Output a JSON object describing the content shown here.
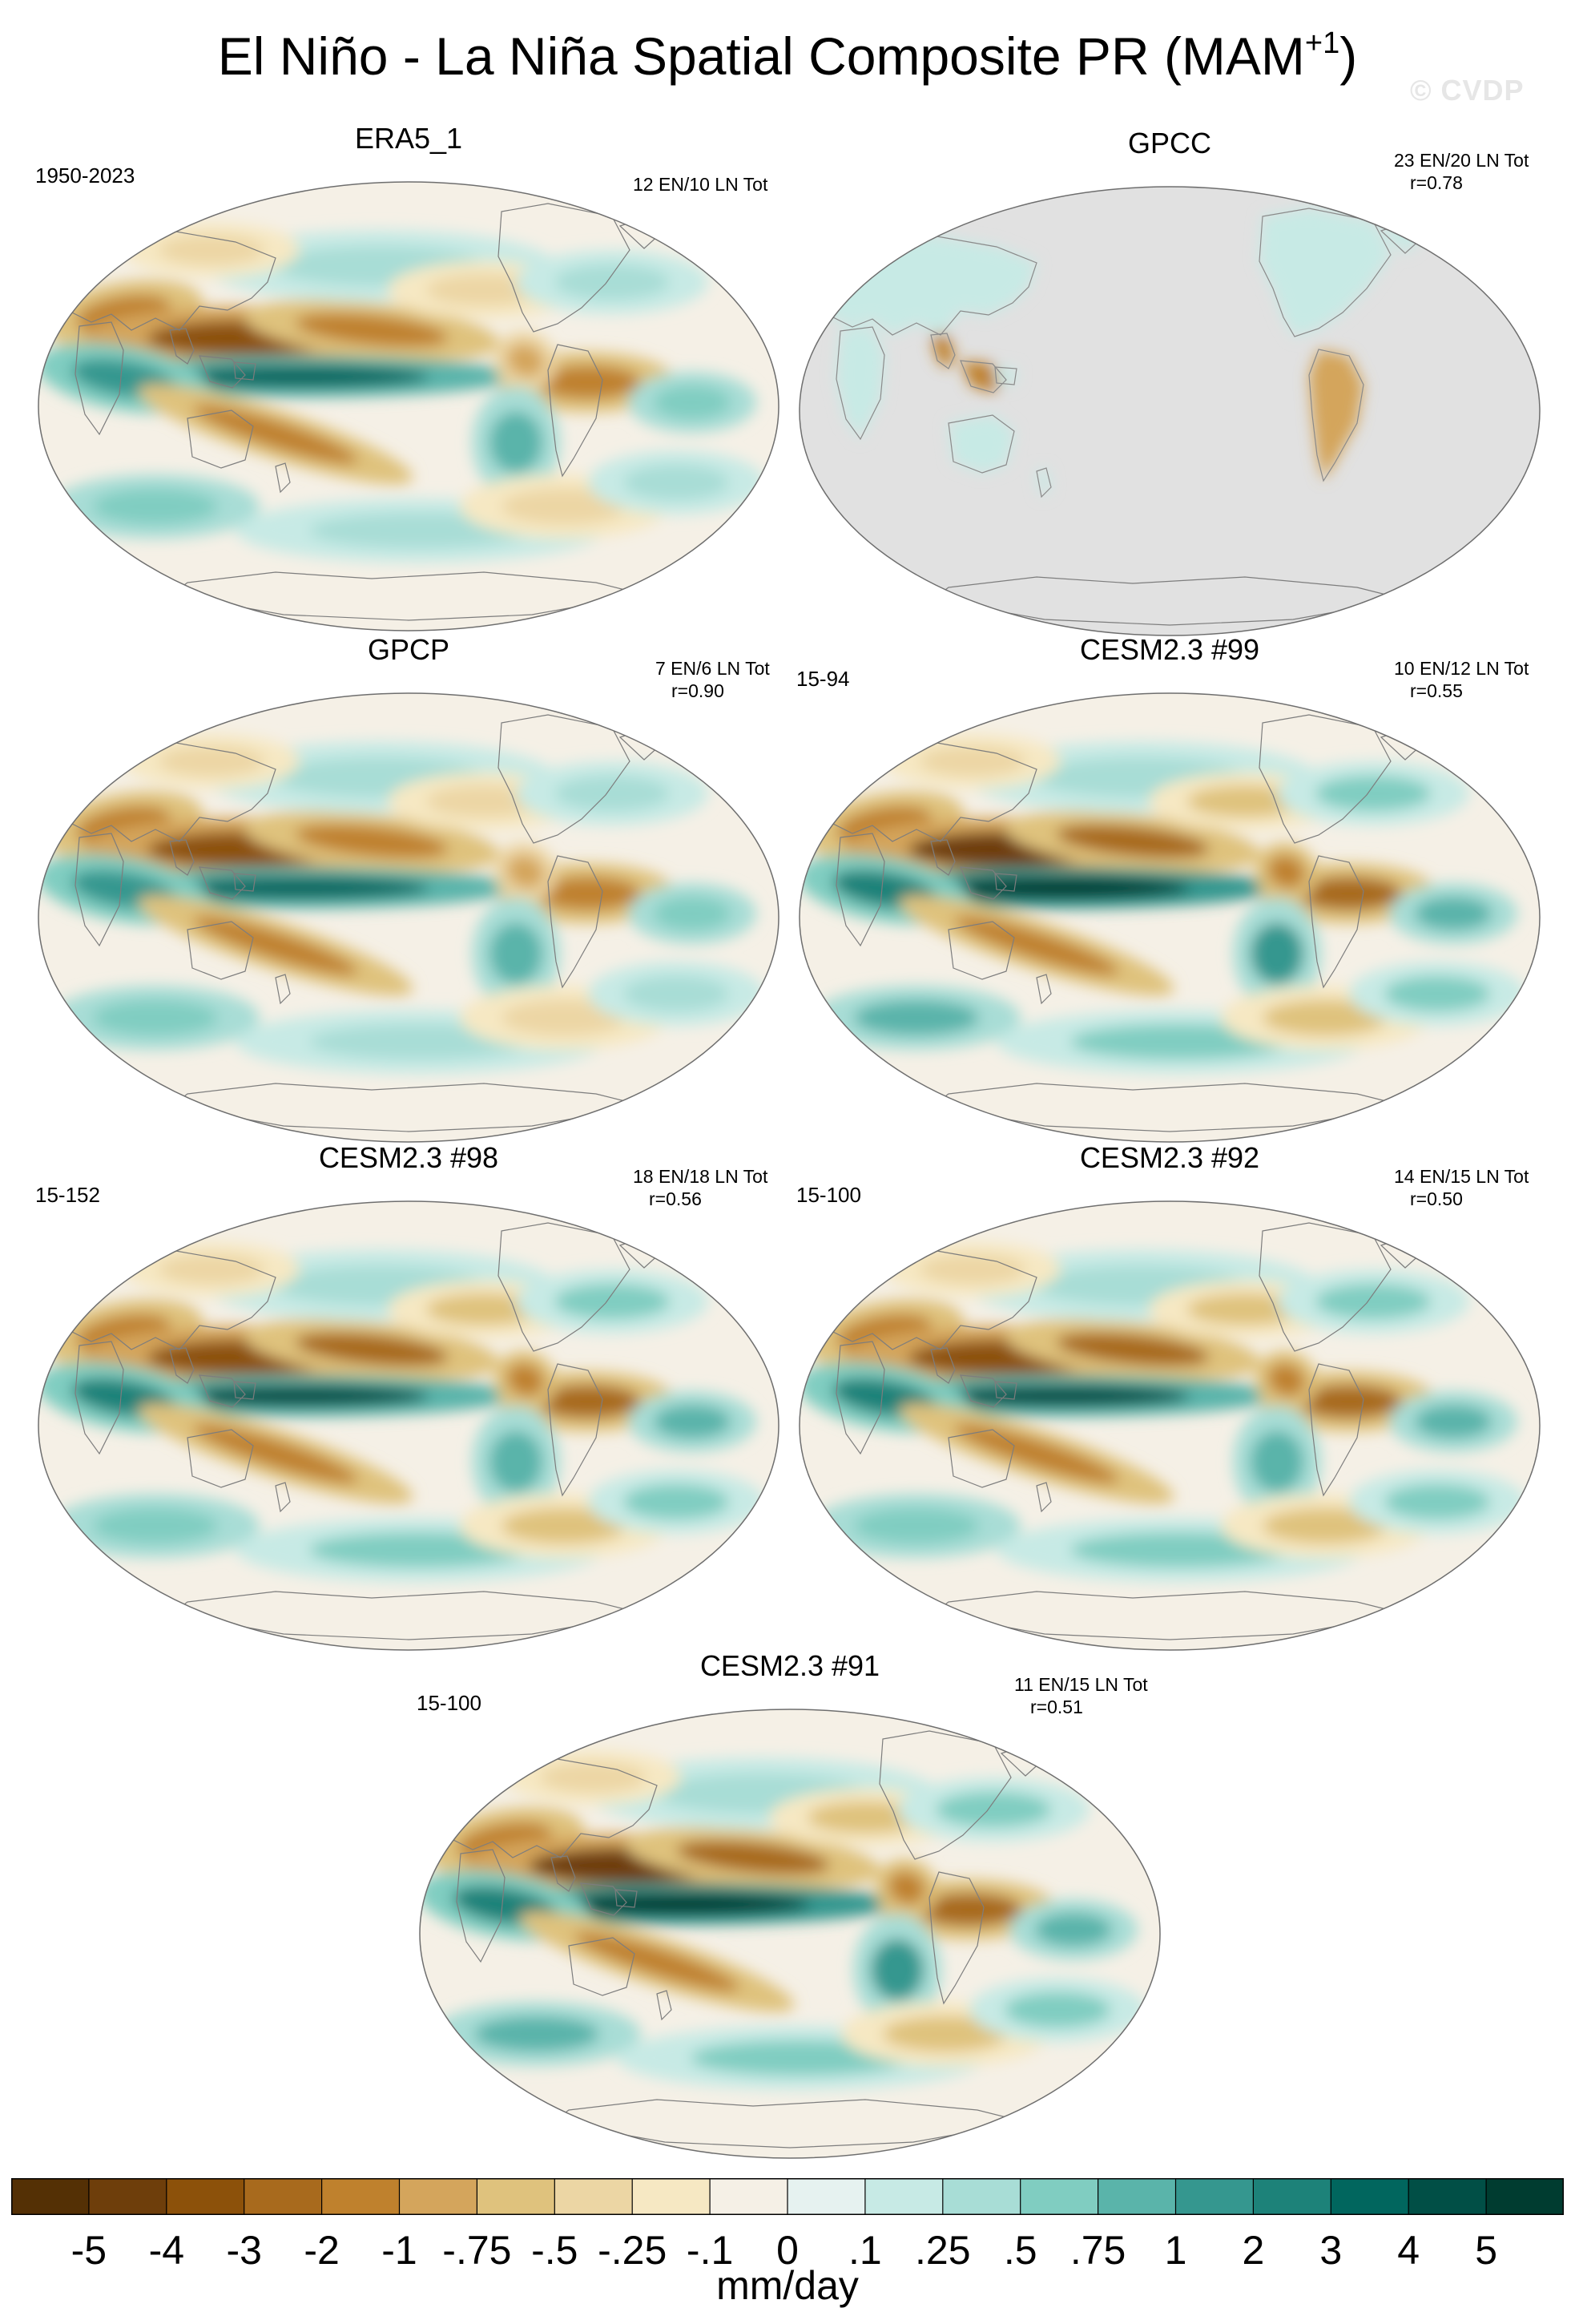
{
  "figure": {
    "title_main": "El Niño - La Niña Spatial Composite PR (MAM",
    "title_sup": "+1",
    "title_end": ")",
    "watermark": "© CVDP"
  },
  "panels": [
    {
      "name": "ERA5_1",
      "period": "1950-2023",
      "events": "12 EN/10 LN Tot",
      "corr": "",
      "land_only": false,
      "strength": 0.85
    },
    {
      "name": "GPCC",
      "period": "",
      "events": "23 EN/20 LN Tot",
      "corr": "r=0.78",
      "land_only": true,
      "strength": 0.7
    },
    {
      "name": "GPCP",
      "period": "",
      "events": "7 EN/6 LN Tot",
      "corr": "r=0.90",
      "land_only": false,
      "strength": 0.85
    },
    {
      "name": "CESM2.3 #99",
      "period": "15-94",
      "events": "10 EN/12 LN Tot",
      "corr": "r=0.55",
      "land_only": false,
      "strength": 1.0
    },
    {
      "name": "CESM2.3 #98",
      "period": "15-152",
      "events": "18 EN/18 LN Tot",
      "corr": "r=0.56",
      "land_only": false,
      "strength": 0.95
    },
    {
      "name": "CESM2.3 #92",
      "period": "15-100",
      "events": "14 EN/15 LN Tot",
      "corr": "r=0.50",
      "land_only": false,
      "strength": 0.95
    },
    {
      "name": "CESM2.3 #91",
      "period": "15-100",
      "events": "11 EN/15 LN Tot",
      "corr": "r=0.51",
      "land_only": false,
      "strength": 1.0
    }
  ],
  "colorbar": {
    "labels": [
      "-5",
      "-4",
      "-3",
      "-2",
      "-1",
      "-.75",
      "-.5",
      "-.25",
      "-.1",
      "0",
      ".1",
      ".25",
      ".5",
      ".75",
      "1",
      "2",
      "3",
      "4",
      "5"
    ],
    "colors": [
      "#543005",
      "#6e3e0b",
      "#8c510a",
      "#a86a1d",
      "#bf812d",
      "#d4a55c",
      "#dfc27d",
      "#ecd6a4",
      "#f6e8c3",
      "#f5f0e6",
      "#e6f2f0",
      "#c7eae5",
      "#a8ddd6",
      "#80cdc1",
      "#5ab4aa",
      "#35978f",
      "#1d8279",
      "#01665e",
      "#014f46",
      "#003c30"
    ],
    "units": "mm/day"
  }
}
